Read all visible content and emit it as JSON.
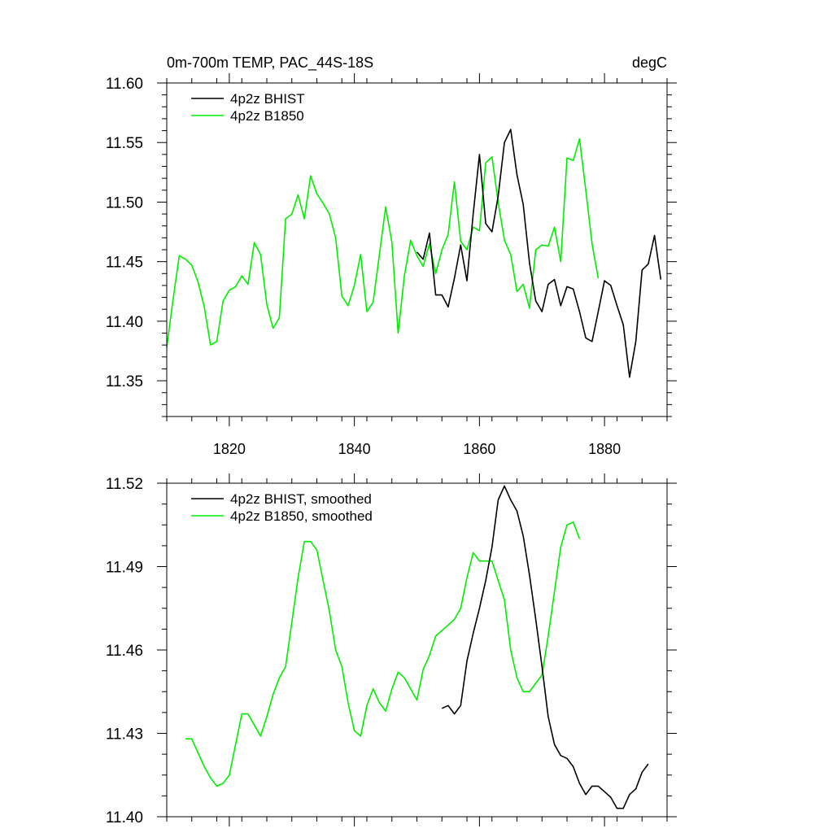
{
  "chart_data": [
    {
      "type": "line",
      "title_left": "0m-700m TEMP, PAC_44S-18S",
      "title_right": "degC",
      "xlim": [
        1810,
        1890
      ],
      "ylim": [
        11.32,
        11.6
      ],
      "yticks": [
        11.35,
        11.4,
        11.45,
        11.5,
        11.55,
        11.6
      ],
      "ytick_labels": [
        "11.35",
        "11.40",
        "11.45",
        "11.50",
        "11.55",
        "11.60"
      ],
      "yminor_step": 0.01,
      "xticks": [
        1820,
        1840,
        1860,
        1880
      ],
      "xtick_labels": [
        "1820",
        "1840",
        "1860",
        "1880"
      ],
      "xminor_step": 4,
      "legend_position": "top-left",
      "series": [
        {
          "name": "4p2z BHIST",
          "color": "#000000",
          "x_start": 1850,
          "values": [
            11.458,
            11.452,
            11.474,
            11.422,
            11.422,
            11.412,
            11.436,
            11.464,
            11.434,
            11.49,
            11.54,
            11.482,
            11.475,
            11.505,
            11.55,
            11.561,
            11.523,
            11.498,
            11.449,
            11.417,
            11.408,
            11.431,
            11.435,
            11.413,
            11.429,
            11.427,
            11.408,
            11.386,
            11.383,
            11.408,
            11.434,
            11.43,
            11.413,
            11.397,
            11.353,
            11.383,
            11.443,
            11.448,
            11.472,
            11.435
          ]
        },
        {
          "name": "4p2z B1850",
          "color": "#00ee00",
          "x_start": 1810,
          "values": [
            11.378,
            11.418,
            11.455,
            11.452,
            11.447,
            11.433,
            11.412,
            11.38,
            11.383,
            11.417,
            11.426,
            11.429,
            11.438,
            11.431,
            11.466,
            11.456,
            11.414,
            11.394,
            11.403,
            11.486,
            11.49,
            11.506,
            11.486,
            11.522,
            11.507,
            11.499,
            11.49,
            11.47,
            11.421,
            11.413,
            11.43,
            11.456,
            11.408,
            11.416,
            11.456,
            11.496,
            11.466,
            11.39,
            11.438,
            11.468,
            11.455,
            11.446,
            11.465,
            11.44,
            11.46,
            11.473,
            11.517,
            11.467,
            11.46,
            11.479,
            11.476,
            11.533,
            11.538,
            11.5,
            11.468,
            11.456,
            11.425,
            11.431,
            11.411,
            11.46,
            11.464,
            11.463,
            11.479,
            11.45,
            11.537,
            11.535,
            11.553,
            11.51,
            11.465,
            11.436
          ]
        }
      ]
    },
    {
      "type": "line",
      "title_left": "",
      "title_right": "",
      "xlim": [
        1810,
        1890
      ],
      "ylim": [
        11.4,
        11.52
      ],
      "yticks": [
        11.4,
        11.43,
        11.46,
        11.49,
        11.52
      ],
      "ytick_labels": [
        "11.40",
        "11.43",
        "11.46",
        "11.49",
        "11.52"
      ],
      "yminor_step": 0.0075,
      "xticks": [
        1820,
        1840,
        1860,
        1880
      ],
      "xtick_labels": [],
      "xminor_step": 4,
      "legend_position": "top-left",
      "series": [
        {
          "name": "4p2z BHIST, smoothed",
          "color": "#000000",
          "x_start": 1854,
          "values": [
            11.439,
            11.44,
            11.437,
            11.44,
            11.456,
            11.466,
            11.475,
            11.485,
            11.497,
            11.514,
            11.519,
            11.514,
            11.51,
            11.501,
            11.487,
            11.471,
            11.454,
            11.436,
            11.426,
            11.422,
            11.421,
            11.418,
            11.412,
            11.408,
            11.411,
            11.411,
            11.409,
            11.407,
            11.403,
            11.403,
            11.408,
            11.41,
            11.416,
            11.419
          ]
        },
        {
          "name": "4p2z B1850, smoothed",
          "color": "#00ee00",
          "x_start": 1813,
          "values": [
            11.428,
            11.428,
            11.423,
            11.418,
            11.414,
            11.411,
            11.412,
            11.415,
            11.426,
            11.437,
            11.437,
            11.433,
            11.429,
            11.436,
            11.444,
            11.45,
            11.454,
            11.47,
            11.486,
            11.499,
            11.499,
            11.496,
            11.485,
            11.474,
            11.46,
            11.454,
            11.441,
            11.431,
            11.429,
            11.44,
            11.446,
            11.441,
            11.438,
            11.446,
            11.452,
            11.45,
            11.446,
            11.442,
            11.453,
            11.458,
            11.465,
            11.467,
            11.469,
            11.471,
            11.475,
            11.486,
            11.495,
            11.492,
            11.492,
            11.492,
            11.485,
            11.478,
            11.46,
            11.45,
            11.445,
            11.445,
            11.448,
            11.451,
            11.465,
            11.481,
            11.497,
            11.505,
            11.506,
            11.5
          ]
        }
      ]
    }
  ]
}
